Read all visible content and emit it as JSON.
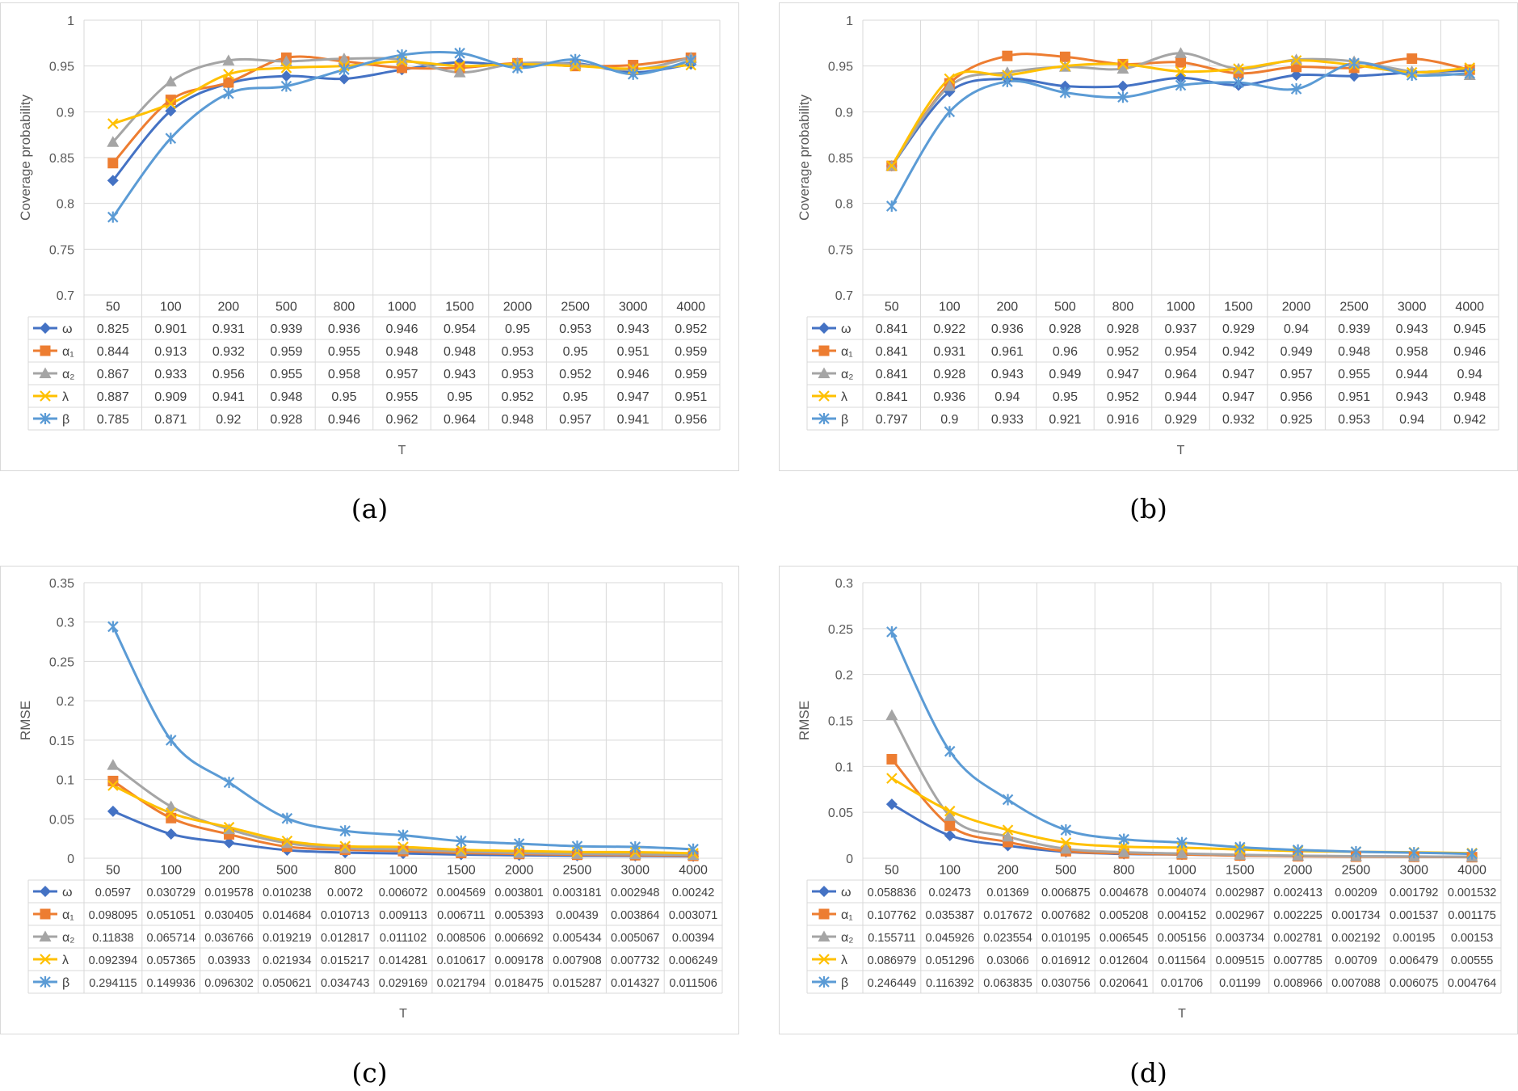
{
  "captions": [
    "(a)",
    "(b)",
    "(c)",
    "(d)"
  ],
  "colors": {
    "ω": "#4472c4",
    "α₁": "#ed7d31",
    "α₂": "#a5a5a5",
    "λ": "#ffc000",
    "β": "#5b9bd5"
  },
  "chart_data": [
    {
      "type": "line",
      "categories": [
        "50",
        "100",
        "200",
        "500",
        "800",
        "1000",
        "1500",
        "2000",
        "2500",
        "3000",
        "4000"
      ],
      "ylabel": "Coverage probability",
      "xlabel": "T",
      "ylim": [
        0.7,
        1
      ],
      "yticks": [
        "0.7",
        "0.75",
        "0.8",
        "0.85",
        "0.9",
        "0.95",
        "1"
      ],
      "series": [
        {
          "name": "ω",
          "marker": "diamond",
          "values": [
            "0.825",
            "0.901",
            "0.931",
            "0.939",
            "0.936",
            "0.946",
            "0.954",
            "0.95",
            "0.953",
            "0.943",
            "0.952"
          ]
        },
        {
          "name": "α₁",
          "marker": "square",
          "values": [
            "0.844",
            "0.913",
            "0.932",
            "0.959",
            "0.955",
            "0.948",
            "0.948",
            "0.953",
            "0.95",
            "0.951",
            "0.959"
          ]
        },
        {
          "name": "α₂",
          "marker": "triangle",
          "values": [
            "0.867",
            "0.933",
            "0.956",
            "0.955",
            "0.958",
            "0.957",
            "0.943",
            "0.953",
            "0.952",
            "0.946",
            "0.959"
          ]
        },
        {
          "name": "λ",
          "marker": "x",
          "values": [
            "0.887",
            "0.909",
            "0.941",
            "0.948",
            "0.95",
            "0.955",
            "0.95",
            "0.952",
            "0.95",
            "0.947",
            "0.951"
          ]
        },
        {
          "name": "β",
          "marker": "star",
          "values": [
            "0.785",
            "0.871",
            "0.92",
            "0.928",
            "0.946",
            "0.962",
            "0.964",
            "0.948",
            "0.957",
            "0.941",
            "0.956"
          ]
        }
      ]
    },
    {
      "type": "line",
      "categories": [
        "50",
        "100",
        "200",
        "500",
        "800",
        "1000",
        "1500",
        "2000",
        "2500",
        "3000",
        "4000"
      ],
      "ylabel": "Coverage probability",
      "xlabel": "T",
      "ylim": [
        0.7,
        1
      ],
      "yticks": [
        "0.7",
        "0.75",
        "0.8",
        "0.85",
        "0.9",
        "0.95",
        "1"
      ],
      "series": [
        {
          "name": "ω",
          "marker": "diamond",
          "values": [
            "0.841",
            "0.922",
            "0.936",
            "0.928",
            "0.928",
            "0.937",
            "0.929",
            "0.94",
            "0.939",
            "0.943",
            "0.945"
          ]
        },
        {
          "name": "α₁",
          "marker": "square",
          "values": [
            "0.841",
            "0.931",
            "0.961",
            "0.96",
            "0.952",
            "0.954",
            "0.942",
            "0.949",
            "0.948",
            "0.958",
            "0.946"
          ]
        },
        {
          "name": "α₂",
          "marker": "triangle",
          "values": [
            "0.841",
            "0.928",
            "0.943",
            "0.949",
            "0.947",
            "0.964",
            "0.947",
            "0.957",
            "0.955",
            "0.944",
            "0.94"
          ]
        },
        {
          "name": "λ",
          "marker": "x",
          "values": [
            "0.841",
            "0.936",
            "0.94",
            "0.95",
            "0.952",
            "0.944",
            "0.947",
            "0.956",
            "0.951",
            "0.943",
            "0.948"
          ]
        },
        {
          "name": "β",
          "marker": "star",
          "values": [
            "0.797",
            "0.9",
            "0.933",
            "0.921",
            "0.916",
            "0.929",
            "0.932",
            "0.925",
            "0.953",
            "0.94",
            "0.942"
          ]
        }
      ]
    },
    {
      "type": "line",
      "categories": [
        "50",
        "100",
        "200",
        "500",
        "800",
        "1000",
        "1500",
        "2000",
        "2500",
        "3000",
        "4000"
      ],
      "ylabel": "RMSE",
      "xlabel": "T",
      "ylim": [
        0,
        0.35
      ],
      "yticks": [
        "0",
        "0.05",
        "0.1",
        "0.15",
        "0.2",
        "0.25",
        "0.3",
        "0.35"
      ],
      "series": [
        {
          "name": "ω",
          "marker": "diamond",
          "values": [
            "0.0597",
            "0.030729",
            "0.019578",
            "0.010238",
            "0.0072",
            "0.006072",
            "0.004569",
            "0.003801",
            "0.003181",
            "0.002948",
            "0.00242"
          ]
        },
        {
          "name": "α₁",
          "marker": "square",
          "values": [
            "0.098095",
            "0.051051",
            "0.030405",
            "0.014684",
            "0.010713",
            "0.009113",
            "0.006711",
            "0.005393",
            "0.00439",
            "0.003864",
            "0.003071"
          ]
        },
        {
          "name": "α₂",
          "marker": "triangle",
          "values": [
            "0.11838",
            "0.065714",
            "0.036766",
            "0.019219",
            "0.012817",
            "0.011102",
            "0.008506",
            "0.006692",
            "0.005434",
            "0.005067",
            "0.00394"
          ]
        },
        {
          "name": "λ",
          "marker": "x",
          "values": [
            "0.092394",
            "0.057365",
            "0.03933",
            "0.021934",
            "0.015217",
            "0.014281",
            "0.010617",
            "0.009178",
            "0.007908",
            "0.007732",
            "0.006249"
          ]
        },
        {
          "name": "β",
          "marker": "star",
          "values": [
            "0.294115",
            "0.149936",
            "0.096302",
            "0.050621",
            "0.034743",
            "0.029169",
            "0.021794",
            "0.018475",
            "0.015287",
            "0.014327",
            "0.011506"
          ]
        }
      ]
    },
    {
      "type": "line",
      "categories": [
        "50",
        "100",
        "200",
        "500",
        "800",
        "1000",
        "1500",
        "2000",
        "2500",
        "3000",
        "4000"
      ],
      "ylabel": "RMSE",
      "xlabel": "T",
      "ylim": [
        0,
        0.3
      ],
      "yticks": [
        "0",
        "0.05",
        "0.1",
        "0.15",
        "0.2",
        "0.25",
        "0.3"
      ],
      "series": [
        {
          "name": "ω",
          "marker": "diamond",
          "values": [
            "0.058836",
            "0.02473",
            "0.01369",
            "0.006875",
            "0.004678",
            "0.004074",
            "0.002987",
            "0.002413",
            "0.00209",
            "0.001792",
            "0.001532"
          ]
        },
        {
          "name": "α₁",
          "marker": "square",
          "values": [
            "0.107762",
            "0.035387",
            "0.017672",
            "0.007682",
            "0.005208",
            "0.004152",
            "0.002967",
            "0.002225",
            "0.001734",
            "0.001537",
            "0.001175"
          ]
        },
        {
          "name": "α₂",
          "marker": "triangle",
          "values": [
            "0.155711",
            "0.045926",
            "0.023554",
            "0.010195",
            "0.006545",
            "0.005156",
            "0.003734",
            "0.002781",
            "0.002192",
            "0.00195",
            "0.00153"
          ]
        },
        {
          "name": "λ",
          "marker": "x",
          "values": [
            "0.086979",
            "0.051296",
            "0.03066",
            "0.016912",
            "0.012604",
            "0.011564",
            "0.009515",
            "0.007785",
            "0.00709",
            "0.006479",
            "0.00555"
          ]
        },
        {
          "name": "β",
          "marker": "star",
          "values": [
            "0.246449",
            "0.116392",
            "0.063835",
            "0.030756",
            "0.020641",
            "0.01706",
            "0.01199",
            "0.008966",
            "0.007088",
            "0.006075",
            "0.004764"
          ]
        }
      ]
    }
  ]
}
